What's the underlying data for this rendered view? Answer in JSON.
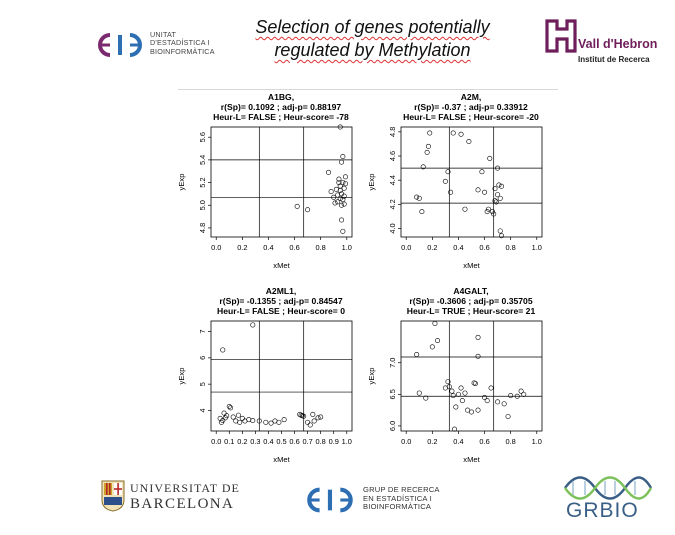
{
  "slide": {
    "title_line1": "Selection of genes potentially",
    "title_line2": "regulated by Methylation",
    "ueb_logo_lines": [
      "UNITAT",
      "D'ESTADÍSTICA I",
      "BIOINFORMÀTICA"
    ],
    "vh_logo_line1": "Vall d'Hebron",
    "vh_logo_line2": "Institut de Recerca",
    "ub_logo_line1": "UNIVERSITAT DE",
    "ub_logo_line2": "BARCELONA",
    "grup_logo_lines": [
      "GRUP DE RECERCA",
      "EN ESTADÍSTICA I",
      "BIOINFORMÀTICA"
    ],
    "grbio_text": "GRBIO",
    "colors": {
      "brand_purple": "#6e1e5b",
      "ueb_purple": "#7a2a6e",
      "ueb_blue": "#2e6fb3",
      "grbio_blue": "#3a5f86",
      "grbio_green": "#7cc15a"
    }
  },
  "chart_data": [
    {
      "type": "scatter",
      "title_lines": [
        "A1BG,",
        "r(Sp)= 0.1092 ; adj-p= 0.88197",
        "Heur-L= FALSE ; Heur-score= -78"
      ],
      "xlabel": "xMet",
      "ylabel": "yExp",
      "xlim": [
        -0.04,
        1.04
      ],
      "ylim": [
        4.72,
        5.69
      ],
      "xticks": [
        "0.0",
        "0.2",
        "0.4",
        "0.6",
        "0.8",
        "1.0"
      ],
      "xtick_values": [
        0,
        0.2,
        0.4,
        0.6,
        0.8,
        1.0
      ],
      "yticks": [
        "4.8",
        "5.0",
        "5.2",
        "5.4",
        "5.6"
      ],
      "ytick_values": [
        4.8,
        5.0,
        5.2,
        5.4,
        5.6
      ],
      "vlines": [
        0.33,
        0.67
      ],
      "hlines": [
        5.07,
        5.4
      ],
      "points": [
        [
          0.62,
          4.99
        ],
        [
          0.7,
          4.96
        ],
        [
          0.86,
          5.29
        ],
        [
          0.88,
          5.12
        ],
        [
          0.9,
          5.07
        ],
        [
          0.91,
          5.02
        ],
        [
          0.92,
          5.14
        ],
        [
          0.93,
          5.09
        ],
        [
          0.94,
          5.2
        ],
        [
          0.95,
          5.17
        ],
        [
          0.95,
          5.06
        ],
        [
          0.96,
          5.0
        ],
        [
          0.96,
          5.1
        ],
        [
          0.97,
          5.2
        ],
        [
          0.97,
          5.05
        ],
        [
          0.98,
          5.15
        ],
        [
          0.98,
          5.08
        ],
        [
          0.99,
          5.19
        ],
        [
          0.99,
          5.25
        ],
        [
          0.96,
          5.38
        ],
        [
          0.97,
          5.43
        ],
        [
          0.95,
          5.69
        ],
        [
          0.96,
          4.87
        ],
        [
          0.97,
          4.77
        ],
        [
          0.94,
          5.23
        ],
        [
          0.93,
          5.03
        ],
        [
          0.98,
          5.01
        ],
        [
          0.95,
          5.13
        ]
      ]
    },
    {
      "type": "scatter",
      "title_lines": [
        "A2M,",
        "r(Sp)= -0.37 ; adj-p= 0.33912",
        "Heur-L= FALSE ; Heur-score= -20"
      ],
      "xlabel": "xMet",
      "ylabel": "yExp",
      "xlim": [
        -0.04,
        1.04
      ],
      "ylim": [
        3.93,
        4.84
      ],
      "xticks": [
        "0.0",
        "0.2",
        "0.4",
        "0.6",
        "0.8",
        "1.0"
      ],
      "xtick_values": [
        0,
        0.2,
        0.4,
        0.6,
        0.8,
        1.0
      ],
      "yticks": [
        "4.0",
        "4.2",
        "4.4",
        "4.6",
        "4.8"
      ],
      "ytick_values": [
        4.0,
        4.2,
        4.4,
        4.6,
        4.8
      ],
      "vlines": [
        0.33,
        0.67
      ],
      "hlines": [
        4.21,
        4.5
      ],
      "points": [
        [
          0.1,
          4.25
        ],
        [
          0.12,
          4.14
        ],
        [
          0.13,
          4.51
        ],
        [
          0.16,
          4.63
        ],
        [
          0.17,
          4.68
        ],
        [
          0.18,
          4.79
        ],
        [
          0.08,
          4.26
        ],
        [
          0.3,
          4.39
        ],
        [
          0.32,
          4.47
        ],
        [
          0.34,
          4.3
        ],
        [
          0.36,
          4.79
        ],
        [
          0.42,
          4.78
        ],
        [
          0.45,
          4.16
        ],
        [
          0.48,
          4.72
        ],
        [
          0.55,
          4.32
        ],
        [
          0.58,
          4.47
        ],
        [
          0.6,
          4.3
        ],
        [
          0.62,
          4.14
        ],
        [
          0.63,
          4.16
        ],
        [
          0.64,
          4.58
        ],
        [
          0.66,
          4.14
        ],
        [
          0.67,
          4.12
        ],
        [
          0.68,
          4.33
        ],
        [
          0.69,
          4.22
        ],
        [
          0.7,
          4.5
        ],
        [
          0.7,
          4.28
        ],
        [
          0.71,
          4.36
        ],
        [
          0.72,
          4.25
        ],
        [
          0.73,
          4.35
        ],
        [
          0.72,
          3.98
        ],
        [
          0.73,
          3.94
        ],
        [
          0.68,
          4.23
        ]
      ]
    },
    {
      "type": "scatter",
      "title_lines": [
        "A2ML1,",
        "r(Sp)= -0.1355 ; adj-p= 0.84547",
        "Heur-L= FALSE ; Heur-score= 0"
      ],
      "xlabel": "xMet",
      "ylabel": "yExp",
      "xlim": [
        -0.04,
        1.04
      ],
      "ylim": [
        3.22,
        7.4
      ],
      "xticks": [
        "0.0",
        "0.1",
        "0.2",
        "0.3",
        "0.4",
        "0.5",
        "0.6",
        "0.7",
        "0.8",
        "0.9",
        "1.0"
      ],
      "xtick_values": [
        0,
        0.1,
        0.2,
        0.3,
        0.4,
        0.5,
        0.6,
        0.7,
        0.8,
        0.9,
        1.0
      ],
      "yticks": [
        "4",
        "5",
        "6",
        "7"
      ],
      "ytick_values": [
        4,
        5,
        6,
        7
      ],
      "vlines": [
        0.33,
        0.67
      ],
      "hlines": [
        4.7,
        5.93
      ],
      "points": [
        [
          0.05,
          6.3
        ],
        [
          0.28,
          7.25
        ],
        [
          0.03,
          3.7
        ],
        [
          0.04,
          3.55
        ],
        [
          0.05,
          3.62
        ],
        [
          0.06,
          3.9
        ],
        [
          0.07,
          3.72
        ],
        [
          0.08,
          3.8
        ],
        [
          0.1,
          4.15
        ],
        [
          0.11,
          4.1
        ],
        [
          0.13,
          3.75
        ],
        [
          0.15,
          3.6
        ],
        [
          0.17,
          3.82
        ],
        [
          0.18,
          3.55
        ],
        [
          0.2,
          3.7
        ],
        [
          0.22,
          3.6
        ],
        [
          0.25,
          3.65
        ],
        [
          0.28,
          3.62
        ],
        [
          0.33,
          3.6
        ],
        [
          0.38,
          3.55
        ],
        [
          0.42,
          3.52
        ],
        [
          0.45,
          3.6
        ],
        [
          0.48,
          3.55
        ],
        [
          0.52,
          3.65
        ],
        [
          0.64,
          3.85
        ],
        [
          0.65,
          3.82
        ],
        [
          0.66,
          3.8
        ],
        [
          0.67,
          3.78
        ],
        [
          0.7,
          3.55
        ],
        [
          0.72,
          3.45
        ],
        [
          0.74,
          3.85
        ],
        [
          0.75,
          3.6
        ],
        [
          0.78,
          3.72
        ],
        [
          0.8,
          3.75
        ]
      ]
    },
    {
      "type": "scatter",
      "title_lines": [
        "A4GALT,",
        "r(Sp)= -0.3606 ; adj-p= 0.35705",
        "Heur-L= TRUE ; Heur-score= 21"
      ],
      "xlabel": "xMet",
      "ylabel": "yExp",
      "xlim": [
        -0.04,
        1.04
      ],
      "ylim": [
        5.92,
        7.66
      ],
      "xticks": [
        "0.0",
        "0.2",
        "0.4",
        "0.6",
        "0.8",
        "1.0"
      ],
      "xtick_values": [
        0,
        0.2,
        0.4,
        0.6,
        0.8,
        1.0
      ],
      "yticks": [
        "6.0",
        "6.5",
        "7.0"
      ],
      "ytick_values": [
        6.0,
        6.5,
        7.0
      ],
      "vlines": [
        0.33,
        0.67
      ],
      "hlines": [
        6.47,
        7.09
      ],
      "points": [
        [
          0.08,
          7.13
        ],
        [
          0.1,
          6.52
        ],
        [
          0.15,
          6.44
        ],
        [
          0.2,
          7.25
        ],
        [
          0.22,
          7.62
        ],
        [
          0.24,
          7.35
        ],
        [
          0.3,
          6.6
        ],
        [
          0.32,
          6.7
        ],
        [
          0.33,
          6.62
        ],
        [
          0.35,
          6.55
        ],
        [
          0.36,
          6.48
        ],
        [
          0.38,
          6.3
        ],
        [
          0.4,
          6.5
        ],
        [
          0.42,
          6.6
        ],
        [
          0.43,
          6.4
        ],
        [
          0.45,
          6.52
        ],
        [
          0.47,
          6.25
        ],
        [
          0.5,
          6.22
        ],
        [
          0.52,
          6.68
        ],
        [
          0.53,
          6.67
        ],
        [
          0.55,
          7.1
        ],
        [
          0.55,
          6.25
        ],
        [
          0.6,
          6.45
        ],
        [
          0.62,
          6.4
        ],
        [
          0.65,
          6.6
        ],
        [
          0.7,
          6.38
        ],
        [
          0.75,
          6.35
        ],
        [
          0.78,
          6.15
        ],
        [
          0.8,
          6.48
        ],
        [
          0.85,
          6.47
        ],
        [
          0.88,
          6.55
        ],
        [
          0.9,
          6.5
        ],
        [
          0.37,
          5.95
        ],
        [
          0.55,
          7.4
        ]
      ]
    }
  ]
}
